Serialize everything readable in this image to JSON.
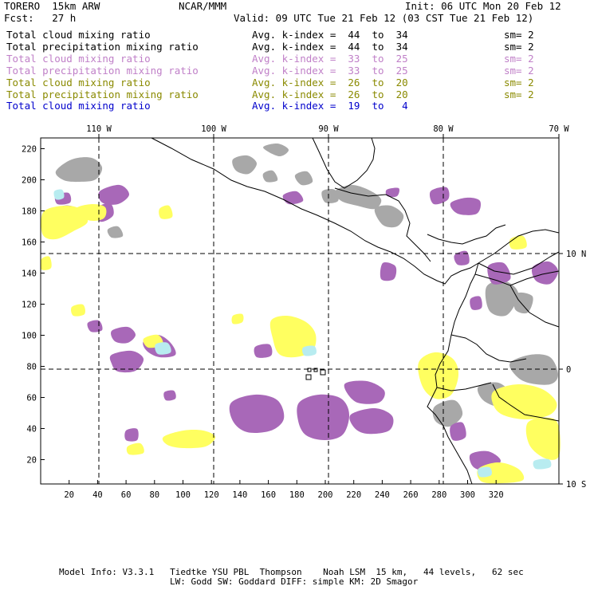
{
  "header": {
    "model": "TORERO  15km ARW",
    "org": "NCAR/MMM",
    "init": "Init: 06 UTC Mon 20 Feb 12",
    "fcst": "Fcst:   27 h",
    "valid": "Valid: 09 UTC Tue 21 Feb 12 (03 CST Tue 21 Feb 12)"
  },
  "legend": [
    {
      "field": "Total cloud mixing ratio",
      "index": "Avg. k-index =  44  to  34",
      "sm": "sm= 2",
      "color": "#000000"
    },
    {
      "field": "Total precipitation mixing ratio",
      "index": "Avg. k-index =  44  to  34",
      "sm": "sm= 2",
      "color": "#000000"
    },
    {
      "field": "Total cloud mixing ratio",
      "index": "Avg. k-index =  33  to  25",
      "sm": "sm= 2",
      "color": "#c080c8"
    },
    {
      "field": "Total precipitation mixing ratio",
      "index": "Avg. k-index =  33  to  25",
      "sm": "sm= 2",
      "color": "#c080c8"
    },
    {
      "field": "Total cloud mixing ratio",
      "index": "Avg. k-index =  26  to  20",
      "sm": "sm= 2",
      "color": "#8a8a00"
    },
    {
      "field": "Total precipitation mixing ratio",
      "index": "Avg. k-index =  26  to  20",
      "sm": "sm= 2",
      "color": "#8a8a00"
    },
    {
      "field": "Total cloud mixing ratio",
      "index": "Avg. k-index =  19  to   4",
      "sm": "",
      "color": "#0000cc"
    }
  ],
  "map": {
    "lon_labels": [
      "110 W",
      "100 W",
      "90 W",
      "80 W",
      "70 W"
    ],
    "lat_labels": [
      "10 N",
      "0",
      "10 S"
    ],
    "y_ticks": [
      "220",
      "200",
      "180",
      "160",
      "140",
      "120",
      "100",
      "80",
      "60",
      "40",
      "20"
    ],
    "x_ticks": [
      "20",
      "40",
      "60",
      "80",
      "100",
      "120",
      "140",
      "160",
      "180",
      "200",
      "220",
      "240",
      "260",
      "280",
      "300",
      "320"
    ],
    "colors": {
      "gray": "#a8a8a8",
      "purple": "#a868b8",
      "yellow": "#ffff60",
      "cyan": "#b8ecf0"
    }
  },
  "footer": {
    "line1": "Model Info: V3.3.1   Tiedtke YSU PBL  Thompson    Noah LSM  15 km,   44 levels,   62 sec",
    "line2": "LW: Godd SW: Goddard DIFF: simple KM: 2D Smagor"
  }
}
